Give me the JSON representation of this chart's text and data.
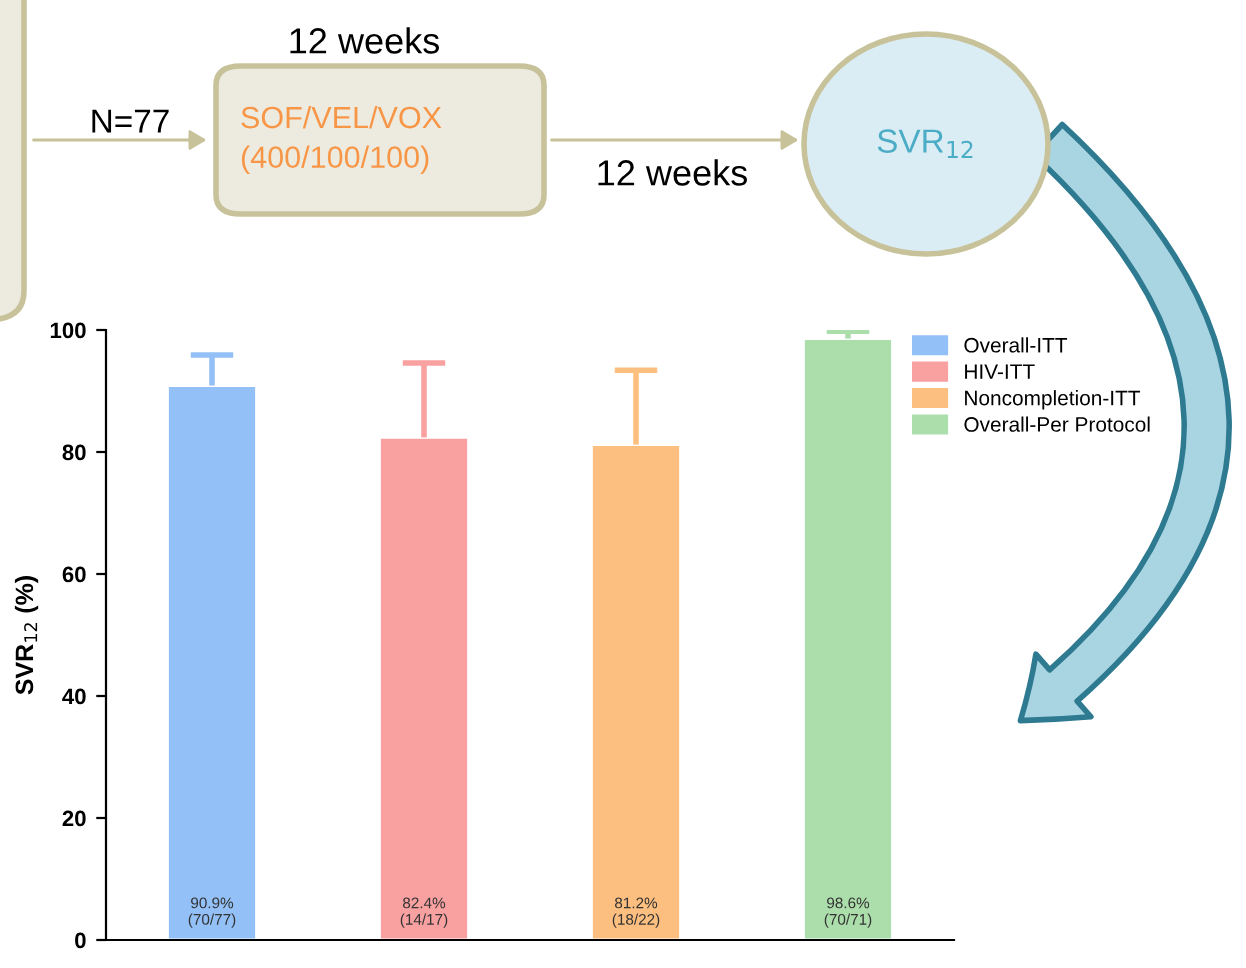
{
  "chart_data": {
    "type": "bar",
    "ylabel": "SVR$_{12}$ (%)",
    "categories": [
      null,
      null,
      null,
      null
    ],
    "series": [
      {
        "name": "Overall-ITT",
        "color": "#92c0f7",
        "values": [
          90.9,
          null,
          null,
          null
        ],
        "errors": [
          [
            90.9,
            95.9
          ],
          null,
          null,
          null
        ],
        "value_labels": [
          "90.9%\n(70/77)",
          null,
          null,
          null
        ]
      },
      {
        "name": "HIV-ITT",
        "color": "#f9a0a0",
        "values": [
          null,
          82.4,
          null,
          null
        ],
        "errors": [
          null,
          [
            82.4,
            94.6
          ],
          null,
          null
        ],
        "value_labels": [
          null,
          "82.4%\n(14/17)",
          null,
          null
        ]
      },
      {
        "name": "Noncompletion-ITT",
        "color": "#fdbf80",
        "values": [
          null,
          null,
          81.2,
          null
        ],
        "errors": [
          null,
          null,
          [
            81.2,
            93.4
          ],
          null
        ],
        "value_labels": [
          null,
          null,
          "81.2%\n(18/22)",
          null
        ]
      },
      {
        "name": "Overall-Per Protocol",
        "color": "#abdeab",
        "values": [
          null,
          null,
          null,
          98.6
        ],
        "errors": [
          null,
          null,
          null,
          [
            98.6,
            99.8
          ]
        ],
        "value_labels": [
          null,
          null,
          null,
          "98.6%\n(70/71)"
        ]
      }
    ],
    "ylim": [
      0,
      100
    ],
    "yticks": [
      0,
      20,
      40,
      60,
      80,
      100
    ],
    "grid": false,
    "legend": "top right",
    "annotations": [
      "12 weeks",
      "N=77",
      "SOF/VEL/VOX\n(400/100/100)",
      "12 weeks",
      "SVR$_{12}$"
    ]
  }
}
